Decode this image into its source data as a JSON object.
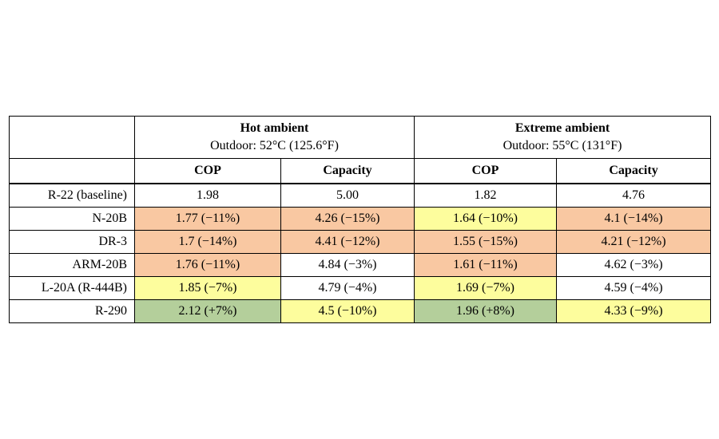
{
  "table": {
    "groups": [
      {
        "title": "Hot ambient",
        "subtitle": "Outdoor: 52°C (125.6°F)"
      },
      {
        "title": "Extreme ambient",
        "subtitle": "Outdoor: 55°C (131°F)"
      }
    ],
    "subheaders": [
      "COP",
      "Capacity",
      "COP",
      "Capacity"
    ],
    "rows": [
      {
        "name": "R-22 (baseline)",
        "cells": [
          {
            "text": "1.98",
            "color": "white"
          },
          {
            "text": "5.00",
            "color": "white"
          },
          {
            "text": "1.82",
            "color": "white"
          },
          {
            "text": "4.76",
            "color": "white"
          }
        ]
      },
      {
        "name": "N-20B",
        "cells": [
          {
            "text": "1.77 (−11%)",
            "color": "orange"
          },
          {
            "text": "4.26 (−15%)",
            "color": "orange"
          },
          {
            "text": "1.64 (−10%)",
            "color": "yellow"
          },
          {
            "text": "4.1 (−14%)",
            "color": "orange"
          }
        ]
      },
      {
        "name": "DR-3",
        "cells": [
          {
            "text": "1.7 (−14%)",
            "color": "orange"
          },
          {
            "text": "4.41 (−12%)",
            "color": "orange"
          },
          {
            "text": "1.55 (−15%)",
            "color": "orange"
          },
          {
            "text": "4.21 (−12%)",
            "color": "orange"
          }
        ]
      },
      {
        "name": "ARM-20B",
        "cells": [
          {
            "text": "1.76 (−11%)",
            "color": "orange"
          },
          {
            "text": "4.84 (−3%)",
            "color": "white"
          },
          {
            "text": "1.61 (−11%)",
            "color": "orange"
          },
          {
            "text": "4.62 (−3%)",
            "color": "white"
          }
        ]
      },
      {
        "name": "L-20A (R-444B)",
        "cells": [
          {
            "text": "1.85 (−7%)",
            "color": "yellow"
          },
          {
            "text": "4.79 (−4%)",
            "color": "white"
          },
          {
            "text": "1.69 (−7%)",
            "color": "yellow"
          },
          {
            "text": "4.59 (−4%)",
            "color": "white"
          }
        ]
      },
      {
        "name": "R-290",
        "cells": [
          {
            "text": "2.12 (+7%)",
            "color": "green"
          },
          {
            "text": "4.5 (−10%)",
            "color": "yellow"
          },
          {
            "text": "1.96 (+8%)",
            "color": "green"
          },
          {
            "text": "4.33 (−9%)",
            "color": "yellow"
          }
        ]
      }
    ],
    "colors": {
      "orange": "#f9c8a2",
      "yellow": "#fdfd9d",
      "green": "#b4cf9b",
      "white": "#ffffff"
    }
  }
}
